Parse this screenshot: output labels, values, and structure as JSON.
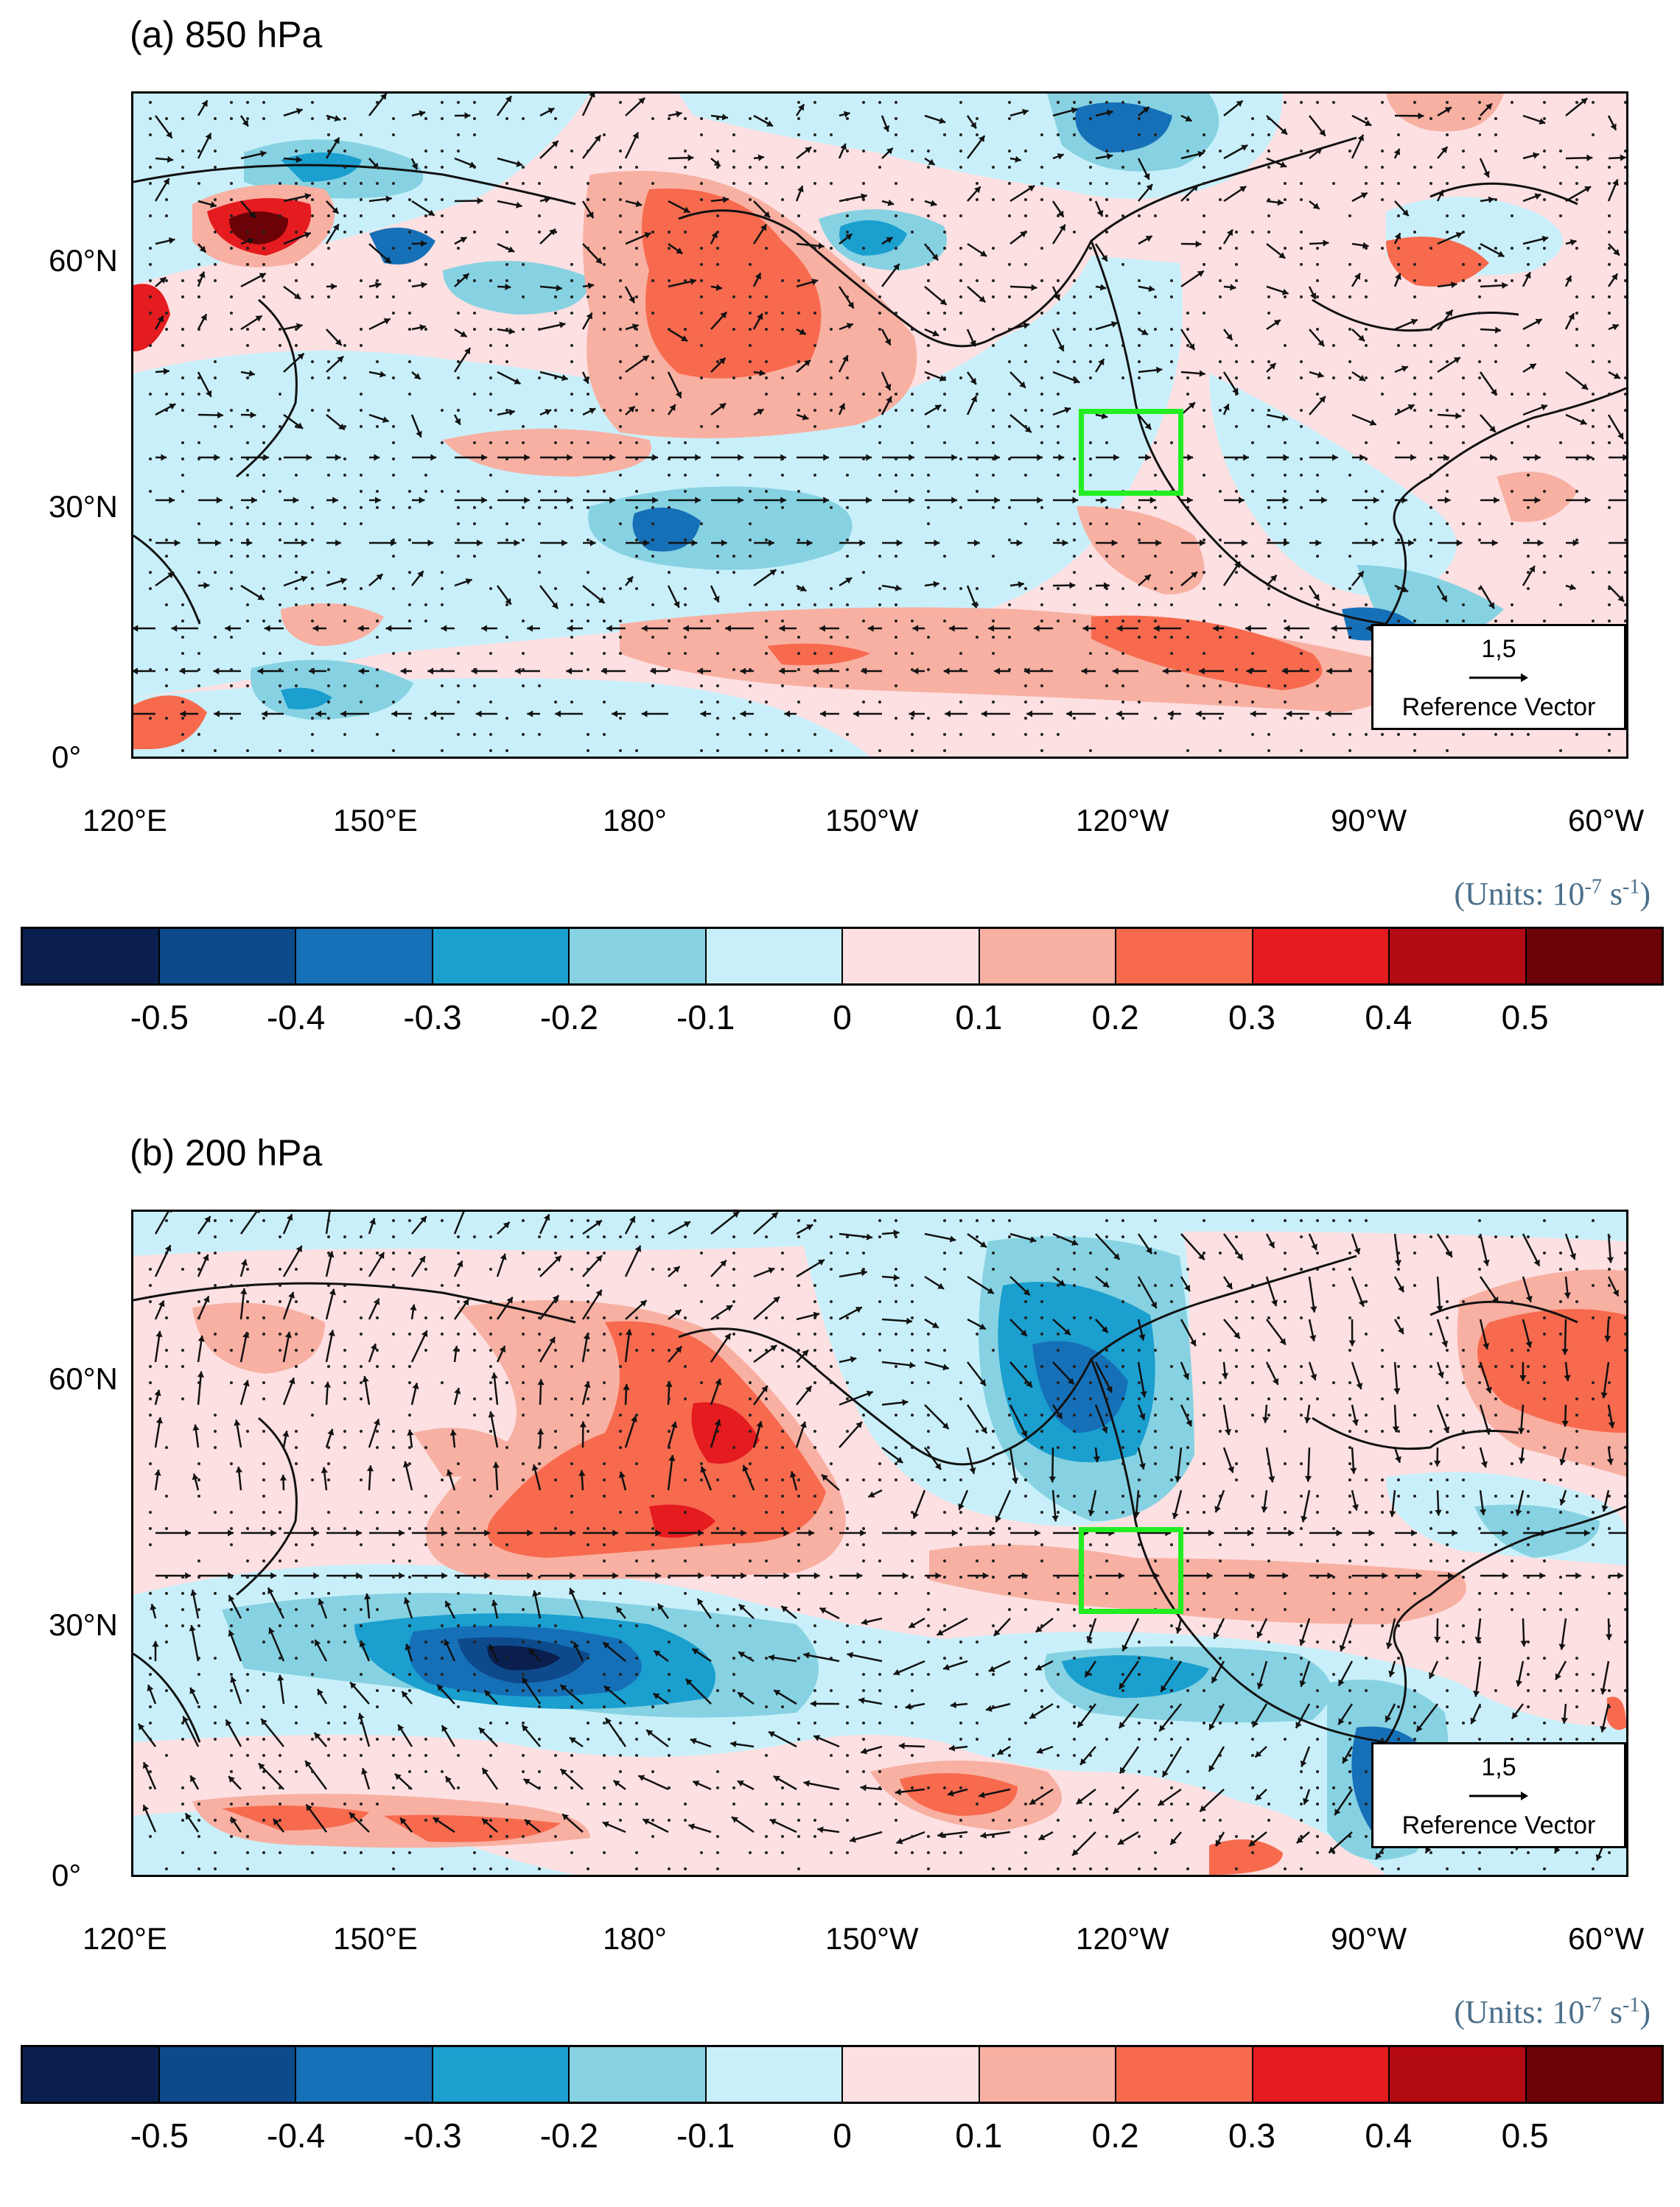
{
  "panels": [
    {
      "title": "(a) 850 hPa",
      "lat_labels": [
        "60°N",
        "30°N",
        "0°"
      ],
      "lon_labels": [
        "120°E",
        "150°E",
        "180°",
        "150°W",
        "120°W",
        "90°W",
        "60°W"
      ],
      "reference_vector": {
        "value": "1,5",
        "label": "Reference Vector"
      },
      "units_label": "(Units: 10",
      "units_exp1": "-7",
      "units_mid": " s",
      "units_exp2": "-1",
      "units_end": ")"
    },
    {
      "title": "(b) 200 hPa",
      "lat_labels": [
        "60°N",
        "30°N",
        "0°"
      ],
      "lon_labels": [
        "120°E",
        "150°E",
        "180°",
        "150°W",
        "120°W",
        "90°W",
        "60°W"
      ],
      "reference_vector": {
        "value": "1,5",
        "label": "Reference Vector"
      },
      "units_label": "(Units: 10",
      "units_exp1": "-7",
      "units_mid": " s",
      "units_exp2": "-1",
      "units_end": ")"
    }
  ],
  "colorbar": {
    "colors": [
      "#0a1f4e",
      "#0d4a8c",
      "#1670b8",
      "#1a9fcf",
      "#86d2e2",
      "#c9f0fa",
      "#fde0e2",
      "#f8b0a2",
      "#f76a4e",
      "#e41b1f",
      "#b30a14",
      "#6b0207"
    ],
    "labels": [
      "-0.5",
      "-0.4",
      "-0.3",
      "-0.2",
      "-0.1",
      "0",
      "0.1",
      "0.2",
      "0.3",
      "0.4",
      "0.5"
    ]
  },
  "region_box": {
    "lon_min": -126,
    "lon_max": -114,
    "lat_min": 32,
    "lat_max": 42,
    "color": "#22ee22"
  },
  "map_extent": {
    "lon_min": 120,
    "lon_max": 300,
    "lat_min": 0,
    "lat_max": 80
  }
}
